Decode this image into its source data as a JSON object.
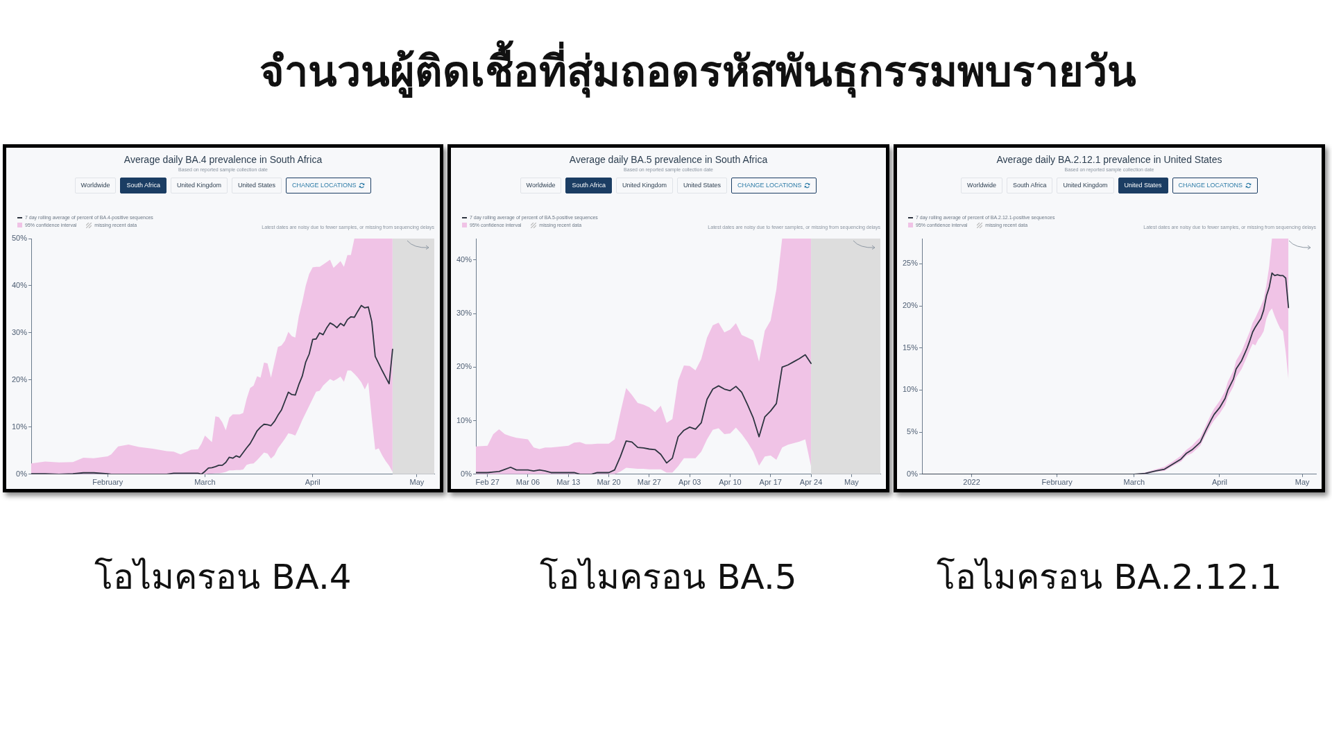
{
  "chart_data": [
    {
      "type": "line",
      "title": "Average daily BA.4 prevalence in South Africa",
      "subtitle": "Based on reported sample collection date",
      "x": [
        "2022-01-10",
        "2022-01-14",
        "2022-01-18",
        "2022-01-22",
        "2022-01-25",
        "2022-01-28",
        "2022-02-01",
        "2022-02-02",
        "2022-02-04",
        "2022-02-07",
        "2022-02-10",
        "2022-02-14",
        "2022-02-18",
        "2022-02-20",
        "2022-02-22",
        "2022-02-25",
        "2022-02-27",
        "2022-02-28",
        "2022-03-01",
        "2022-03-02",
        "2022-03-03",
        "2022-03-04",
        "2022-03-05",
        "2022-03-06",
        "2022-03-07",
        "2022-03-08",
        "2022-03-09",
        "2022-03-10",
        "2022-03-11",
        "2022-03-12",
        "2022-03-13",
        "2022-03-14",
        "2022-03-15",
        "2022-03-16",
        "2022-03-17",
        "2022-03-18",
        "2022-03-19",
        "2022-03-20",
        "2022-03-21",
        "2022-03-22",
        "2022-03-23",
        "2022-03-24",
        "2022-03-25",
        "2022-03-26",
        "2022-03-27",
        "2022-03-28",
        "2022-03-29",
        "2022-03-30",
        "2022-03-31",
        "2022-04-01",
        "2022-04-02",
        "2022-04-03",
        "2022-04-04",
        "2022-04-05",
        "2022-04-06",
        "2022-04-07",
        "2022-04-08",
        "2022-04-09",
        "2022-04-10",
        "2022-04-11",
        "2022-04-12",
        "2022-04-13",
        "2022-04-14",
        "2022-04-15",
        "2022-04-16",
        "2022-04-17",
        "2022-04-18",
        "2022-04-19",
        "2022-04-20",
        "2022-04-21",
        "2022-04-22",
        "2022-04-23",
        "2022-04-24"
      ],
      "xlim": [
        "2022-01-10",
        "2022-05-06"
      ],
      "xticks": [
        {
          "value": "2022-02-01",
          "label": "February"
        },
        {
          "value": "2022-03-01",
          "label": "March"
        },
        {
          "value": "2022-04-01",
          "label": "April"
        },
        {
          "value": "2022-05-01",
          "label": "May"
        }
      ],
      "ylim": [
        0,
        50
      ],
      "yticks": [
        {
          "value": 0,
          "label": "0%"
        },
        {
          "value": 10,
          "label": "10%"
        },
        {
          "value": 20,
          "label": "20%"
        },
        {
          "value": 30,
          "label": "30%"
        },
        {
          "value": 40,
          "label": "40%"
        },
        {
          "value": 50,
          "label": "50%"
        }
      ],
      "series": [
        {
          "name": "7 day rolling average of percent of BA.4-positive sequences",
          "color": "#2d3440",
          "values": [
            0.1,
            0.1,
            0,
            0.1,
            0.3,
            0.3,
            0.1,
            0,
            0,
            0,
            0,
            0,
            0,
            0.2,
            0.2,
            0.2,
            0.2,
            0,
            0.6,
            1.3,
            1.4,
            1.6,
            1.9,
            1.9,
            2.5,
            3.6,
            3.4,
            3.9,
            3.6,
            4.6,
            5.6,
            6.5,
            7.8,
            9.2,
            10.0,
            10.6,
            10.5,
            10.3,
            11.2,
            12.5,
            13.6,
            15.5,
            17.4,
            16.9,
            16.8,
            19.0,
            20.8,
            23.8,
            25.5,
            28.6,
            28.7,
            30.0,
            29.6,
            31.0,
            32.1,
            31.7,
            31.1,
            32.0,
            31.5,
            32.8,
            33.4,
            33.3,
            34.6,
            35.8,
            35.3,
            35.5,
            32.4,
            25.0,
            23.5,
            22.0,
            20.6,
            19.2,
            26.5
          ],
          "lower": [
            0,
            0,
            0,
            0,
            0,
            0,
            0,
            0,
            0,
            0,
            0,
            0,
            0,
            0,
            0,
            0,
            0,
            0,
            0,
            0.1,
            0.1,
            0.2,
            0.2,
            0.3,
            0.5,
            0.8,
            0.8,
            0.9,
            0.9,
            1.0,
            2.0,
            2.2,
            2.3,
            3.0,
            3.8,
            4.6,
            4.4,
            3.3,
            4.0,
            5.5,
            6.5,
            7.5,
            8.7,
            8.5,
            8.2,
            9.8,
            11.5,
            13.0,
            14.5,
            16.0,
            17.5,
            17.7,
            18.8,
            19.5,
            20.2,
            19.8,
            20.2,
            20.7,
            19.6,
            22.0,
            22.0,
            21.3,
            20.5,
            19.5,
            18.0,
            19.5,
            12.0,
            5.2,
            5.5,
            4.0,
            2.8,
            1.8,
            0.5
          ],
          "upper": [
            2.3,
            2.7,
            2.5,
            2.6,
            3.5,
            3.4,
            3.8,
            4.2,
            5.9,
            6.3,
            5.8,
            5.4,
            4.9,
            4.8,
            4.2,
            5.2,
            5.3,
            6.5,
            8.2,
            7.5,
            6.8,
            12.3,
            12.1,
            11.0,
            9.3,
            12.0,
            12.7,
            12.7,
            12.7,
            13.0,
            16.0,
            18.3,
            18.8,
            20.8,
            20.5,
            23.7,
            23.5,
            20.5,
            23.8,
            27.0,
            27.3,
            28.3,
            30.2,
            29.3,
            29.0,
            33.5,
            36.5,
            40.0,
            42.5,
            43.9,
            44.0,
            44.0,
            44.5,
            45.0,
            45.5,
            43.8,
            44.5,
            45.2,
            44.0,
            46.5,
            46.5,
            50,
            50,
            50,
            50,
            50,
            50,
            50,
            50,
            50,
            50,
            50,
            50
          ]
        }
      ],
      "bands": [
        {
          "axis": "x",
          "from": "2022-04-24",
          "to": "2022-05-06",
          "color": "#dddddd"
        }
      ],
      "legend": "top left",
      "grid": false,
      "marker": "none",
      "line_style": "solid",
      "annotations": [
        "Worldwide",
        "South Africa",
        "United Kingdom",
        "United States",
        "CHANGE LOCATIONS",
        "95% confidence interval",
        "missing recent data",
        "Latest dates are noisy due to fewer samples, or missing from sequencing delays",
        "โอไมครอน BA.4",
        "จำนวนผู้ติดเชื้อที่สุ่มถอดรหัสพันธุกรรมพบรายวัน"
      ]
    },
    {
      "type": "line",
      "title": "Average daily BA.5 prevalence in South Africa",
      "subtitle": "Based on reported sample collection date",
      "x": [
        "2022-02-25",
        "2022-02-27",
        "2022-02-28",
        "2022-03-01",
        "2022-03-02",
        "2022-03-03",
        "2022-03-04",
        "2022-03-06",
        "2022-03-07",
        "2022-03-08",
        "2022-03-09",
        "2022-03-10",
        "2022-03-13",
        "2022-03-14",
        "2022-03-15",
        "2022-03-16",
        "2022-03-17",
        "2022-03-18",
        "2022-03-20",
        "2022-03-21",
        "2022-03-22",
        "2022-03-23",
        "2022-03-24",
        "2022-03-25",
        "2022-03-26",
        "2022-03-27",
        "2022-03-28",
        "2022-03-29",
        "2022-03-30",
        "2022-03-31",
        "2022-04-01",
        "2022-04-02",
        "2022-04-03",
        "2022-04-04",
        "2022-04-05",
        "2022-04-06",
        "2022-04-07",
        "2022-04-08",
        "2022-04-09",
        "2022-04-10",
        "2022-04-11",
        "2022-04-12",
        "2022-04-13",
        "2022-04-14",
        "2022-04-15",
        "2022-04-16",
        "2022-04-17",
        "2022-04-18",
        "2022-04-19",
        "2022-04-20",
        "2022-04-21",
        "2022-04-22",
        "2022-04-23",
        "2022-04-24"
      ],
      "xlim": [
        "2022-02-25",
        "2022-05-06"
      ],
      "xticks": [
        {
          "value": "2022-02-27",
          "label": "Feb 27"
        },
        {
          "value": "2022-03-06",
          "label": "Mar 06"
        },
        {
          "value": "2022-03-13",
          "label": "Mar 13"
        },
        {
          "value": "2022-03-20",
          "label": "Mar 20"
        },
        {
          "value": "2022-03-27",
          "label": "Mar 27"
        },
        {
          "value": "2022-04-03",
          "label": "Apr 03"
        },
        {
          "value": "2022-04-10",
          "label": "Apr 10"
        },
        {
          "value": "2022-04-17",
          "label": "Apr 17"
        },
        {
          "value": "2022-04-24",
          "label": "Apr 24"
        },
        {
          "value": "2022-05-01",
          "label": "May"
        }
      ],
      "ylim": [
        0,
        44
      ],
      "yticks": [
        {
          "value": 0,
          "label": "0%"
        },
        {
          "value": 10,
          "label": "10%"
        },
        {
          "value": 20,
          "label": "20%"
        },
        {
          "value": 30,
          "label": "30%"
        },
        {
          "value": 40,
          "label": "40%"
        }
      ],
      "series": [
        {
          "name": "7 day rolling average of percent of BA.5-positive sequences",
          "color": "#2d3440",
          "values": [
            0.3,
            0.3,
            0.4,
            0.5,
            0.9,
            1.3,
            0.8,
            0.8,
            0.6,
            0.8,
            0.6,
            0.3,
            0.3,
            0.3,
            0,
            0,
            0,
            0.3,
            0.3,
            0.8,
            3.3,
            6.2,
            6.0,
            5.0,
            4.9,
            4.7,
            4.6,
            3.7,
            2.1,
            3.0,
            7.0,
            8.2,
            8.8,
            8.4,
            9.6,
            14.0,
            15.9,
            16.5,
            15.9,
            15.6,
            16.4,
            15.3,
            13.0,
            10.5,
            7.0,
            10.7,
            11.8,
            13.2,
            20.0,
            20.4,
            21.0,
            21.6,
            22.3,
            20.7
          ],
          "lower": [
            0,
            0,
            0,
            0,
            0,
            0,
            0,
            0,
            0,
            0,
            0,
            0,
            0,
            0,
            0,
            0,
            0,
            0,
            0,
            0,
            0.5,
            1.2,
            1.1,
            1.0,
            1.0,
            0.9,
            0.9,
            0.9,
            0.3,
            0.3,
            1.5,
            3.0,
            3.0,
            3.0,
            4.2,
            6.5,
            8.3,
            8.6,
            7.5,
            7.6,
            8.7,
            7.5,
            6.0,
            4.2,
            1.6,
            3.3,
            3.5,
            2.7,
            5.0,
            5.5,
            5.8,
            6.1,
            6.5,
            1.5
          ],
          "upper": [
            5.2,
            5.3,
            7.5,
            8.4,
            7.5,
            7.1,
            6.8,
            6.5,
            5.0,
            4.7,
            5.0,
            5.0,
            5.3,
            5.9,
            6.0,
            5.6,
            5.6,
            5.7,
            5.7,
            6.5,
            11.5,
            16.1,
            14.8,
            13.3,
            13.0,
            12.5,
            11.6,
            12.8,
            9.6,
            10.3,
            17.5,
            20.3,
            20.2,
            19.4,
            21.5,
            25.5,
            27.8,
            28.3,
            26.5,
            27.0,
            28.2,
            26.0,
            25.5,
            25.0,
            21.0,
            26.8,
            28.7,
            34.5,
            44,
            44,
            44,
            44,
            44,
            44
          ]
        }
      ],
      "bands": [
        {
          "axis": "x",
          "from": "2022-04-24",
          "to": "2022-05-06",
          "color": "#dddddd"
        }
      ],
      "legend": "top left",
      "grid": false,
      "marker": "none",
      "line_style": "solid",
      "annotations": [
        "Worldwide",
        "South Africa",
        "United Kingdom",
        "United States",
        "CHANGE LOCATIONS",
        "95% confidence interval",
        "missing recent data",
        "Latest dates are noisy due to fewer samples, or missing from sequencing delays",
        "โอไมครอน BA.5"
      ]
    },
    {
      "type": "line",
      "title": "Average daily BA.2.12.1 prevalence in United States",
      "subtitle": "Based on reported sample collection date",
      "x": [
        "2021-12-14",
        "2022-03-01",
        "2022-03-05",
        "2022-03-09",
        "2022-03-12",
        "2022-03-15",
        "2022-03-18",
        "2022-03-20",
        "2022-03-22",
        "2022-03-24",
        "2022-03-25",
        "2022-03-27",
        "2022-03-29",
        "2022-03-30",
        "2022-04-01",
        "2022-04-03",
        "2022-04-04",
        "2022-04-06",
        "2022-04-07",
        "2022-04-09",
        "2022-04-11",
        "2022-04-12",
        "2022-04-13",
        "2022-04-14",
        "2022-04-15",
        "2022-04-16",
        "2022-04-17",
        "2022-04-18",
        "2022-04-19",
        "2022-04-20",
        "2022-04-21",
        "2022-04-22",
        "2022-04-23",
        "2022-04-24",
        "2022-04-25",
        "2022-04-26"
      ],
      "xlim": [
        "2021-12-14",
        "2022-05-06"
      ],
      "xticks": [
        {
          "value": "2022-01-01",
          "label": "2022"
        },
        {
          "value": "2022-02-01",
          "label": "February"
        },
        {
          "value": "2022-03-01",
          "label": "March"
        },
        {
          "value": "2022-04-01",
          "label": "April"
        },
        {
          "value": "2022-05-01",
          "label": "May"
        }
      ],
      "ylim": [
        0,
        28
      ],
      "yticks": [
        {
          "value": 0,
          "label": "0%"
        },
        {
          "value": 5,
          "label": "5%"
        },
        {
          "value": 10,
          "label": "10%"
        },
        {
          "value": 15,
          "label": "15%"
        },
        {
          "value": 20,
          "label": "20%"
        },
        {
          "value": 25,
          "label": "25%"
        }
      ],
      "series": [
        {
          "name": "7 day rolling average of percent of BA.2.12.1-positive sequences",
          "color": "#2d3440",
          "values": [
            0,
            0,
            0.1,
            0.4,
            0.6,
            1.2,
            1.8,
            2.5,
            2.9,
            3.5,
            3.8,
            5.2,
            6.5,
            7.1,
            7.9,
            9.0,
            10.0,
            11.3,
            12.5,
            13.5,
            15.0,
            15.9,
            16.9,
            17.5,
            18.0,
            18.5,
            19.5,
            21.2,
            22.2,
            23.9,
            23.6,
            23.7,
            23.6,
            23.6,
            23.3,
            19.8
          ],
          "lower": [
            0,
            0,
            0,
            0.3,
            0.4,
            1.0,
            1.5,
            2.2,
            2.5,
            3.1,
            3.4,
            4.7,
            5.9,
            6.4,
            7.2,
            8.2,
            9.2,
            10.4,
            11.5,
            12.5,
            14.0,
            14.8,
            15.5,
            15.3,
            16.0,
            16.4,
            17.0,
            18.5,
            19.3,
            19.7,
            18.8,
            18.0,
            17.3,
            17.0,
            14.5,
            11.2
          ],
          "upper": [
            0,
            0,
            0.2,
            0.6,
            0.9,
            1.5,
            2.2,
            2.9,
            3.4,
            4.1,
            4.4,
            5.8,
            7.2,
            7.8,
            8.7,
            9.9,
            11.0,
            12.3,
            13.5,
            14.6,
            16.2,
            17.0,
            18.0,
            18.6,
            19.3,
            20.0,
            20.8,
            22.5,
            24.7,
            28,
            28,
            28,
            28,
            28,
            28,
            28
          ]
        }
      ],
      "legend": "top left",
      "grid": false,
      "marker": "none",
      "line_style": "solid",
      "annotations": [
        "Worldwide",
        "South Africa",
        "United Kingdom",
        "United States",
        "CHANGE LOCATIONS",
        "95% confidence interval",
        "missing recent data",
        "Latest dates are noisy due to fewer samples, or missing from sequencing delays",
        "โอไมครอน BA.2.12.1"
      ]
    }
  ]
}
